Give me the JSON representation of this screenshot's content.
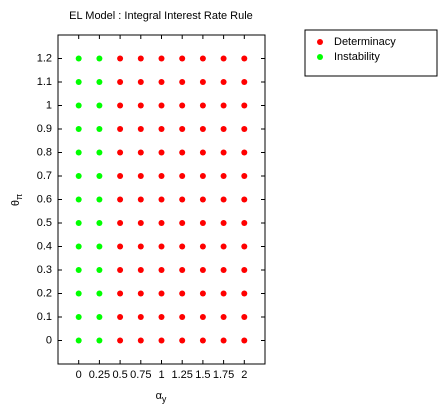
{
  "chart_data": {
    "type": "scatter",
    "title": "EL Model : Integral Interest Rate Rule",
    "xlabel": [
      "α",
      "y"
    ],
    "ylabel": [
      "θ",
      "π"
    ],
    "xlim": [
      -0.25,
      2.25
    ],
    "ylim": [
      -0.1,
      1.3
    ],
    "xticks": [
      0,
      0.25,
      0.5,
      0.75,
      1,
      1.25,
      1.5,
      1.75,
      2
    ],
    "yticks": [
      0,
      0.1,
      0.2,
      0.3,
      0.4,
      0.5,
      0.6,
      0.7,
      0.8,
      0.9,
      1,
      1.1,
      1.2
    ],
    "legend": "outside-upper-right",
    "series": [
      {
        "name": "Determinacy",
        "color": "#ff0000",
        "x": [
          0.5,
          0.75,
          1,
          1.25,
          1.5,
          1.75,
          2,
          0.5,
          0.75,
          1,
          1.25,
          1.5,
          1.75,
          2,
          0.5,
          0.75,
          1,
          1.25,
          1.5,
          1.75,
          2,
          0.5,
          0.75,
          1,
          1.25,
          1.5,
          1.75,
          2,
          0.5,
          0.75,
          1,
          1.25,
          1.5,
          1.75,
          2,
          0.5,
          0.75,
          1,
          1.25,
          1.5,
          1.75,
          2,
          0.5,
          0.75,
          1,
          1.25,
          1.5,
          1.75,
          2,
          0.5,
          0.75,
          1,
          1.25,
          1.5,
          1.75,
          2,
          0.5,
          0.75,
          1,
          1.25,
          1.5,
          1.75,
          2,
          0.5,
          0.75,
          1,
          1.25,
          1.5,
          1.75,
          2,
          0.5,
          0.75,
          1,
          1.25,
          1.5,
          1.75,
          2,
          0.5,
          0.75,
          1,
          1.25,
          1.5,
          1.75,
          2,
          0.5,
          0.75,
          1,
          1.25,
          1.5,
          1.75,
          2
        ],
        "y": [
          0,
          0,
          0,
          0,
          0,
          0,
          0,
          0.1,
          0.1,
          0.1,
          0.1,
          0.1,
          0.1,
          0.1,
          0.2,
          0.2,
          0.2,
          0.2,
          0.2,
          0.2,
          0.2,
          0.3,
          0.3,
          0.3,
          0.3,
          0.3,
          0.3,
          0.3,
          0.4,
          0.4,
          0.4,
          0.4,
          0.4,
          0.4,
          0.4,
          0.5,
          0.5,
          0.5,
          0.5,
          0.5,
          0.5,
          0.5,
          0.6,
          0.6,
          0.6,
          0.6,
          0.6,
          0.6,
          0.6,
          0.7,
          0.7,
          0.7,
          0.7,
          0.7,
          0.7,
          0.7,
          0.8,
          0.8,
          0.8,
          0.8,
          0.8,
          0.8,
          0.8,
          0.9,
          0.9,
          0.9,
          0.9,
          0.9,
          0.9,
          0.9,
          1,
          1,
          1,
          1,
          1,
          1,
          1,
          1.1,
          1.1,
          1.1,
          1.1,
          1.1,
          1.1,
          1.1,
          1.2,
          1.2,
          1.2,
          1.2,
          1.2,
          1.2,
          1.2
        ]
      },
      {
        "name": "Instability",
        "color": "#00ff00",
        "x": [
          0,
          0.25,
          0,
          0.25,
          0,
          0.25,
          0,
          0.25,
          0,
          0.25,
          0,
          0.25,
          0,
          0.25,
          0,
          0.25,
          0,
          0.25,
          0,
          0.25,
          0,
          0.25,
          0,
          0.25,
          0,
          0.25
        ],
        "y": [
          0,
          0,
          0.1,
          0.1,
          0.2,
          0.2,
          0.3,
          0.3,
          0.4,
          0.4,
          0.5,
          0.5,
          0.6,
          0.6,
          0.7,
          0.7,
          0.8,
          0.8,
          0.9,
          0.9,
          1,
          1,
          1.1,
          1.1,
          1.2,
          1.2
        ]
      }
    ]
  }
}
